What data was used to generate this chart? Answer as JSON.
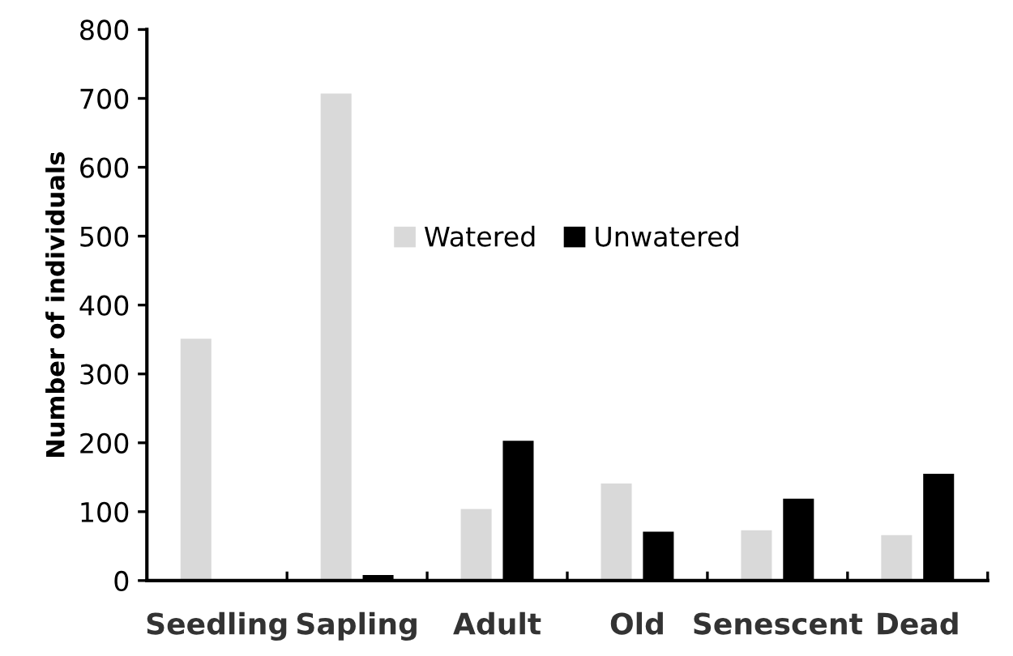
{
  "chart_data": {
    "type": "bar",
    "ylabel": "Number of individuals",
    "categories": [
      "Seedling",
      "Sapling",
      "Adult",
      "Old",
      "Senescent",
      "Dead"
    ],
    "series": [
      {
        "name": "Watered",
        "color": "#d9d9d9",
        "values": [
          351,
          707,
          104,
          141,
          73,
          66
        ]
      },
      {
        "name": "Unwatered",
        "color": "#000000",
        "values": [
          0,
          8,
          203,
          71,
          119,
          155
        ]
      }
    ],
    "ylim": [
      0,
      800
    ],
    "yticks": [
      0,
      100,
      200,
      300,
      400,
      500,
      600,
      700,
      800
    ],
    "grid": false,
    "legend": "top"
  }
}
